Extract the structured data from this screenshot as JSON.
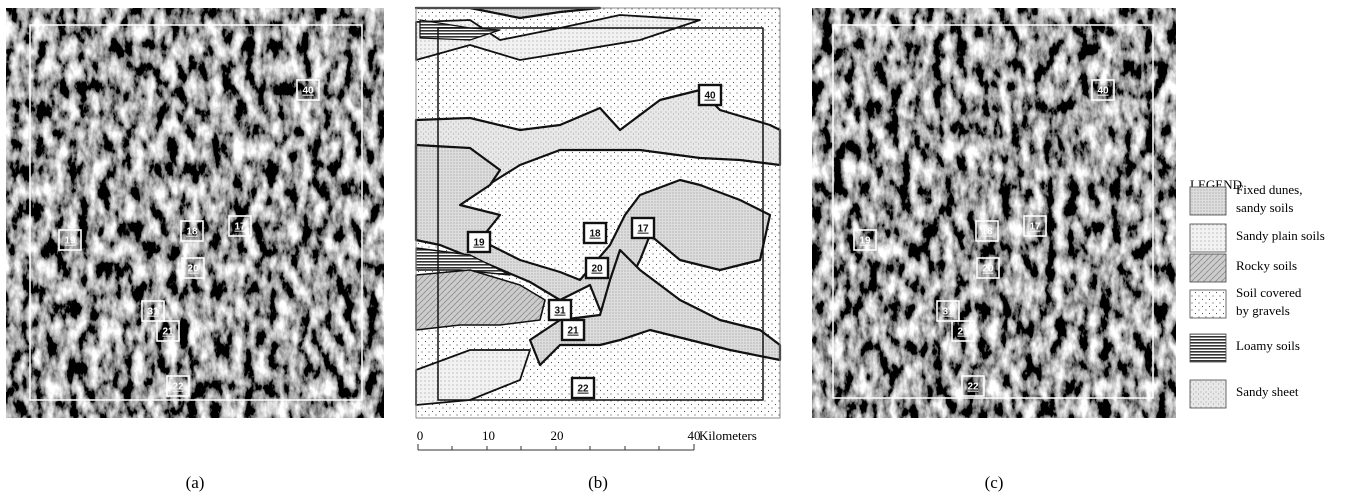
{
  "panels": [
    {
      "caption": "(a)"
    },
    {
      "caption": "(b)"
    },
    {
      "caption": "(c)"
    }
  ],
  "sites": [
    "40",
    "17",
    "18",
    "19",
    "20",
    "31",
    "21",
    "22"
  ],
  "scale_bar": {
    "ticks": [
      0,
      10,
      20,
      40
    ],
    "unit": "Kilometers"
  },
  "legend": {
    "title": "LEGEND",
    "entries": [
      {
        "label": [
          "Fixed dunes,",
          "sandy soils"
        ]
      },
      {
        "label": [
          "Sandy plain soils"
        ]
      },
      {
        "label": [
          "Rocky soils"
        ]
      },
      {
        "label": [
          "Soil covered",
          "by gravels"
        ]
      },
      {
        "label": [
          "Loamy soils"
        ]
      },
      {
        "label": [
          "Sandy sheet"
        ]
      }
    ]
  }
}
